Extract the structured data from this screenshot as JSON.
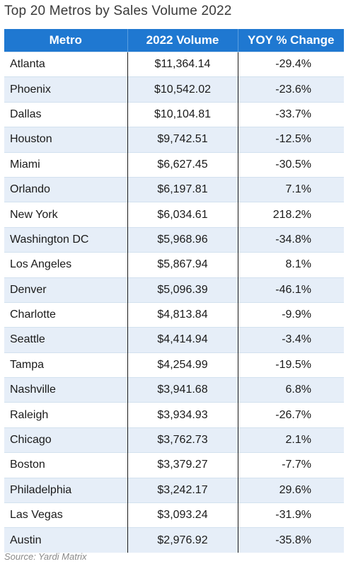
{
  "title": "Top 20 Metros by Sales Volume 2022",
  "source": "Source: Yardi Matrix",
  "colors": {
    "header_bg": "#1f78d1",
    "header_text": "#ffffff",
    "stripe": "#e6eef8"
  },
  "chart_data": {
    "type": "table",
    "title": "Top 20 Metros by Sales Volume 2022",
    "columns": [
      "Metro",
      "2022 Volume",
      "YOY % Change"
    ],
    "rows": [
      [
        "Atlanta",
        "$11,364.14",
        "-29.4%"
      ],
      [
        "Phoenix",
        "$10,542.02",
        "-23.6%"
      ],
      [
        "Dallas",
        "$10,104.81",
        "-33.7%"
      ],
      [
        "Houston",
        "$9,742.51",
        "-12.5%"
      ],
      [
        "Miami",
        "$6,627.45",
        "-30.5%"
      ],
      [
        "Orlando",
        "$6,197.81",
        "7.1%"
      ],
      [
        "New York",
        "$6,034.61",
        "218.2%"
      ],
      [
        "Washington DC",
        "$5,968.96",
        "-34.8%"
      ],
      [
        "Los Angeles",
        "$5,867.94",
        "8.1%"
      ],
      [
        "Denver",
        "$5,096.39",
        "-46.1%"
      ],
      [
        "Charlotte",
        "$4,813.84",
        "-9.9%"
      ],
      [
        "Seattle",
        "$4,414.94",
        "-3.4%"
      ],
      [
        "Tampa",
        "$4,254.99",
        "-19.5%"
      ],
      [
        "Nashville",
        "$3,941.68",
        "6.8%"
      ],
      [
        "Raleigh",
        "$3,934.93",
        "-26.7%"
      ],
      [
        "Chicago",
        "$3,762.73",
        "2.1%"
      ],
      [
        "Boston",
        "$3,379.27",
        "-7.7%"
      ],
      [
        "Philadelphia",
        "$3,242.17",
        "29.6%"
      ],
      [
        "Las Vegas",
        "$3,093.24",
        "-31.9%"
      ],
      [
        "Austin",
        "$2,976.92",
        "-35.8%"
      ]
    ]
  }
}
